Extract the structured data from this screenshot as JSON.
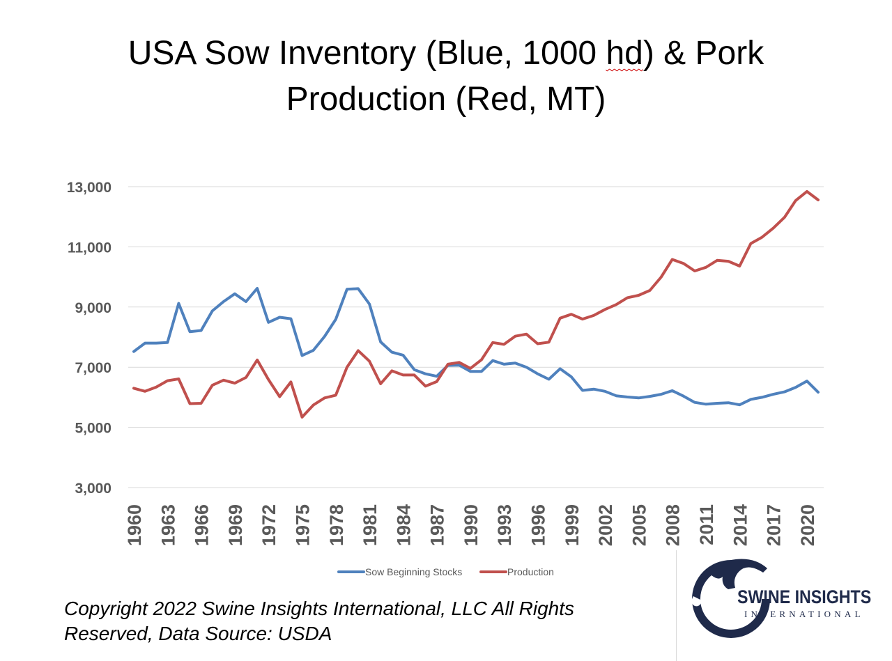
{
  "chart_data": {
    "type": "line",
    "title_line1_a": "USA Sow Inventory (Blue, 1000 ",
    "title_line1_b": "hd",
    "title_line1_c": ") & Pork",
    "title_line2": "Production (Red, MT)",
    "ylim": [
      3000,
      13000
    ],
    "yticks": [
      "3,000",
      "5,000",
      "7,000",
      "9,000",
      "11,000",
      "13,000"
    ],
    "ytick_values": [
      3000,
      5000,
      7000,
      9000,
      11000,
      13000
    ],
    "x": [
      1960,
      1961,
      1962,
      1963,
      1964,
      1965,
      1966,
      1967,
      1968,
      1969,
      1970,
      1971,
      1972,
      1973,
      1974,
      1975,
      1976,
      1977,
      1978,
      1979,
      1980,
      1981,
      1982,
      1983,
      1984,
      1985,
      1986,
      1987,
      1988,
      1989,
      1990,
      1991,
      1992,
      1993,
      1994,
      1995,
      1996,
      1997,
      1998,
      1999,
      2000,
      2001,
      2002,
      2003,
      2004,
      2005,
      2006,
      2007,
      2008,
      2009,
      2010,
      2011,
      2012,
      2013,
      2014,
      2015,
      2016,
      2017,
      2018,
      2019,
      2020,
      2021
    ],
    "xtick_labels": [
      "1960",
      "1963",
      "1966",
      "1969",
      "1972",
      "1975",
      "1978",
      "1981",
      "1984",
      "1987",
      "1990",
      "1993",
      "1996",
      "1999",
      "2002",
      "2005",
      "2008",
      "2011",
      "2014",
      "2017",
      "2020"
    ],
    "xtick_years": [
      1960,
      1963,
      1966,
      1969,
      1972,
      1975,
      1978,
      1981,
      1984,
      1987,
      1990,
      1993,
      1996,
      1999,
      2002,
      2005,
      2008,
      2011,
      2014,
      2017,
      2020
    ],
    "series": [
      {
        "name": "Sow Beginning Stocks",
        "color": "#4f81bd",
        "values": [
          7520,
          7800,
          7800,
          7820,
          9120,
          8180,
          8220,
          8870,
          9180,
          9440,
          9180,
          9620,
          8490,
          8660,
          8610,
          7390,
          7560,
          8020,
          8590,
          9590,
          9610,
          9100,
          7840,
          7500,
          7400,
          6920,
          6780,
          6700,
          7060,
          7070,
          6860,
          6860,
          7220,
          7100,
          7140,
          7000,
          6780,
          6600,
          6950,
          6680,
          6230,
          6270,
          6200,
          6050,
          6010,
          5980,
          6030,
          6100,
          6220,
          6040,
          5830,
          5770,
          5800,
          5820,
          5750,
          5930,
          6000,
          6100,
          6180,
          6330,
          6540,
          6170
        ]
      },
      {
        "name": "Production",
        "color": "#c0504d",
        "values": [
          6300,
          6200,
          6340,
          6550,
          6610,
          5790,
          5800,
          6400,
          6570,
          6470,
          6660,
          7240,
          6590,
          6020,
          6510,
          5340,
          5740,
          5980,
          6070,
          7000,
          7550,
          7200,
          6450,
          6880,
          6740,
          6740,
          6370,
          6520,
          7100,
          7160,
          6960,
          7250,
          7820,
          7760,
          8030,
          8100,
          7780,
          7830,
          8630,
          8760,
          8600,
          8720,
          8920,
          9080,
          9310,
          9390,
          9550,
          9990,
          10580,
          10450,
          10200,
          10320,
          10550,
          10520,
          10360,
          11110,
          11320,
          11620,
          11980,
          12540,
          12840,
          12560
        ]
      }
    ]
  },
  "copyright_line1": "Copyright 2022 Swine Insights International, LLC All Rights",
  "copyright_line2": "Reserved, Data Source: USDA",
  "logo": {
    "name": "SWINE INSIGHTS",
    "sub": "INTERNATIONAL",
    "color": "#1f2a4a"
  }
}
